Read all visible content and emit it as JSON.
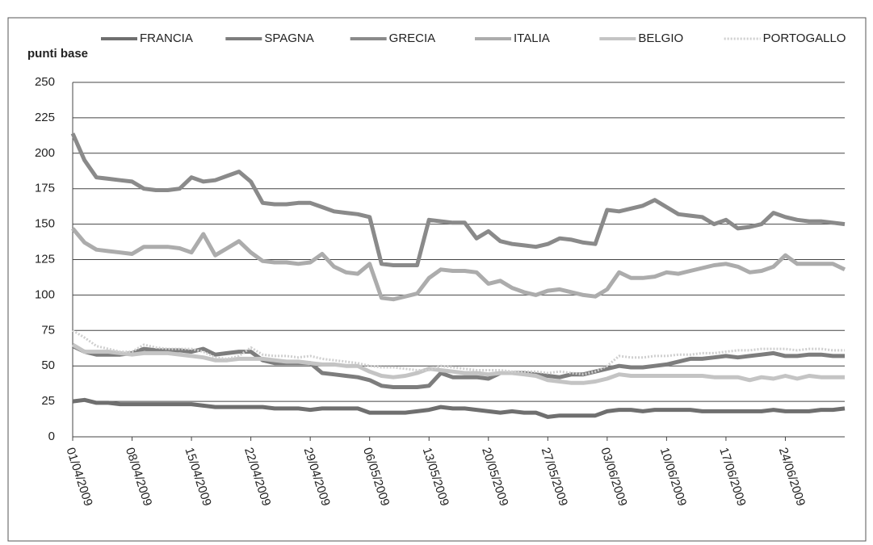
{
  "chart_data": {
    "type": "line",
    "y_label": "punti base",
    "categories": [
      "01/04/2009",
      null,
      null,
      null,
      null,
      "08/04/2009",
      null,
      null,
      null,
      null,
      "15/04/2009",
      null,
      null,
      null,
      null,
      "22/04/2009",
      null,
      null,
      null,
      null,
      "29/04/2009",
      null,
      null,
      null,
      null,
      "06/05/2009",
      null,
      null,
      null,
      null,
      "13/05/2009",
      null,
      null,
      null,
      null,
      "20/05/2009",
      null,
      null,
      null,
      null,
      "27/05/2009",
      null,
      null,
      null,
      null,
      "03/06/2009",
      null,
      null,
      null,
      null,
      "10/06/2009",
      null,
      null,
      null,
      null,
      "17/06/2009",
      null,
      null,
      null,
      null,
      "24/06/2009",
      null,
      null,
      null,
      null,
      null
    ],
    "ylim": [
      0,
      250
    ],
    "yticks": [
      0,
      25,
      50,
      75,
      100,
      125,
      150,
      175,
      200,
      225,
      250
    ],
    "grid": true,
    "legend": "top",
    "series": [
      {
        "name": "FRANCIA",
        "color": "#6f6f6f",
        "values": [
          25,
          26,
          24,
          24,
          23,
          23,
          23,
          23,
          23,
          23,
          23,
          22,
          21,
          21,
          21,
          21,
          21,
          20,
          20,
          20,
          19,
          20,
          20,
          20,
          20,
          17,
          17,
          17,
          17,
          18,
          19,
          21,
          20,
          20,
          19,
          18,
          17,
          18,
          17,
          17,
          14,
          15,
          15,
          15,
          15,
          18,
          19,
          19,
          18,
          19,
          19,
          19,
          19,
          18,
          18,
          18,
          18,
          18,
          18,
          19,
          18,
          18,
          18,
          19,
          19,
          20
        ]
      },
      {
        "name": "SPAGNA",
        "color": "#7d7d7d",
        "values": [
          64,
          60,
          58,
          58,
          58,
          59,
          62,
          61,
          61,
          61,
          60,
          62,
          58,
          59,
          60,
          60,
          54,
          52,
          52,
          52,
          52,
          45,
          44,
          43,
          42,
          40,
          36,
          35,
          35,
          35,
          36,
          45,
          42,
          42,
          42,
          41,
          45,
          45,
          45,
          44,
          43,
          42,
          44,
          44,
          46,
          48,
          50,
          49,
          49,
          50,
          51,
          53,
          55,
          55,
          56,
          57,
          56,
          57,
          58,
          59,
          57,
          57,
          58,
          58,
          57,
          57
        ]
      },
      {
        "name": "GRECIA",
        "color": "#8a8a8a",
        "values": [
          214,
          195,
          183,
          182,
          181,
          180,
          175,
          174,
          174,
          175,
          183,
          180,
          181,
          184,
          187,
          180,
          165,
          164,
          164,
          165,
          165,
          162,
          159,
          158,
          157,
          155,
          122,
          121,
          121,
          121,
          153,
          152,
          151,
          151,
          140,
          145,
          138,
          136,
          135,
          134,
          136,
          140,
          139,
          137,
          136,
          160,
          159,
          161,
          163,
          167,
          162,
          157,
          156,
          155,
          150,
          153,
          147,
          148,
          150,
          158,
          155,
          153,
          152,
          152,
          151,
          150
        ]
      },
      {
        "name": "ITALIA",
        "color": "#acacac",
        "values": [
          147,
          137,
          132,
          131,
          130,
          129,
          134,
          134,
          134,
          133,
          130,
          143,
          128,
          133,
          138,
          130,
          124,
          123,
          123,
          122,
          123,
          129,
          120,
          116,
          115,
          122,
          98,
          97,
          99,
          101,
          112,
          118,
          117,
          117,
          116,
          108,
          110,
          105,
          102,
          100,
          103,
          104,
          102,
          100,
          99,
          104,
          116,
          112,
          112,
          113,
          116,
          115,
          117,
          119,
          121,
          122,
          120,
          116,
          117,
          120,
          128,
          122,
          122,
          122,
          122,
          118
        ]
      },
      {
        "name": "BELGIO",
        "color": "#c4c4c4",
        "values": [
          65,
          60,
          60,
          60,
          59,
          58,
          59,
          59,
          59,
          58,
          57,
          56,
          54,
          54,
          55,
          55,
          55,
          54,
          53,
          53,
          52,
          51,
          51,
          50,
          50,
          46,
          43,
          42,
          43,
          45,
          48,
          47,
          46,
          45,
          45,
          44,
          45,
          45,
          44,
          43,
          40,
          39,
          38,
          38,
          39,
          41,
          44,
          43,
          43,
          43,
          43,
          43,
          43,
          43,
          42,
          42,
          42,
          40,
          42,
          41,
          43,
          41,
          43,
          42,
          42,
          42
        ]
      },
      {
        "name": "PORTOGALLO",
        "color": "#cfcfcf",
        "style": "dotted",
        "values": [
          75,
          70,
          64,
          62,
          60,
          60,
          65,
          63,
          62,
          62,
          62,
          60,
          56,
          55,
          57,
          63,
          58,
          57,
          57,
          56,
          57,
          55,
          54,
          53,
          52,
          50,
          49,
          49,
          48,
          47,
          47,
          50,
          49,
          48,
          47,
          47,
          47,
          46,
          46,
          46,
          45,
          46,
          45,
          44,
          46,
          50,
          57,
          56,
          56,
          57,
          57,
          58,
          58,
          59,
          59,
          60,
          61,
          61,
          62,
          62,
          62,
          61,
          62,
          62,
          61,
          61
        ]
      }
    ]
  }
}
